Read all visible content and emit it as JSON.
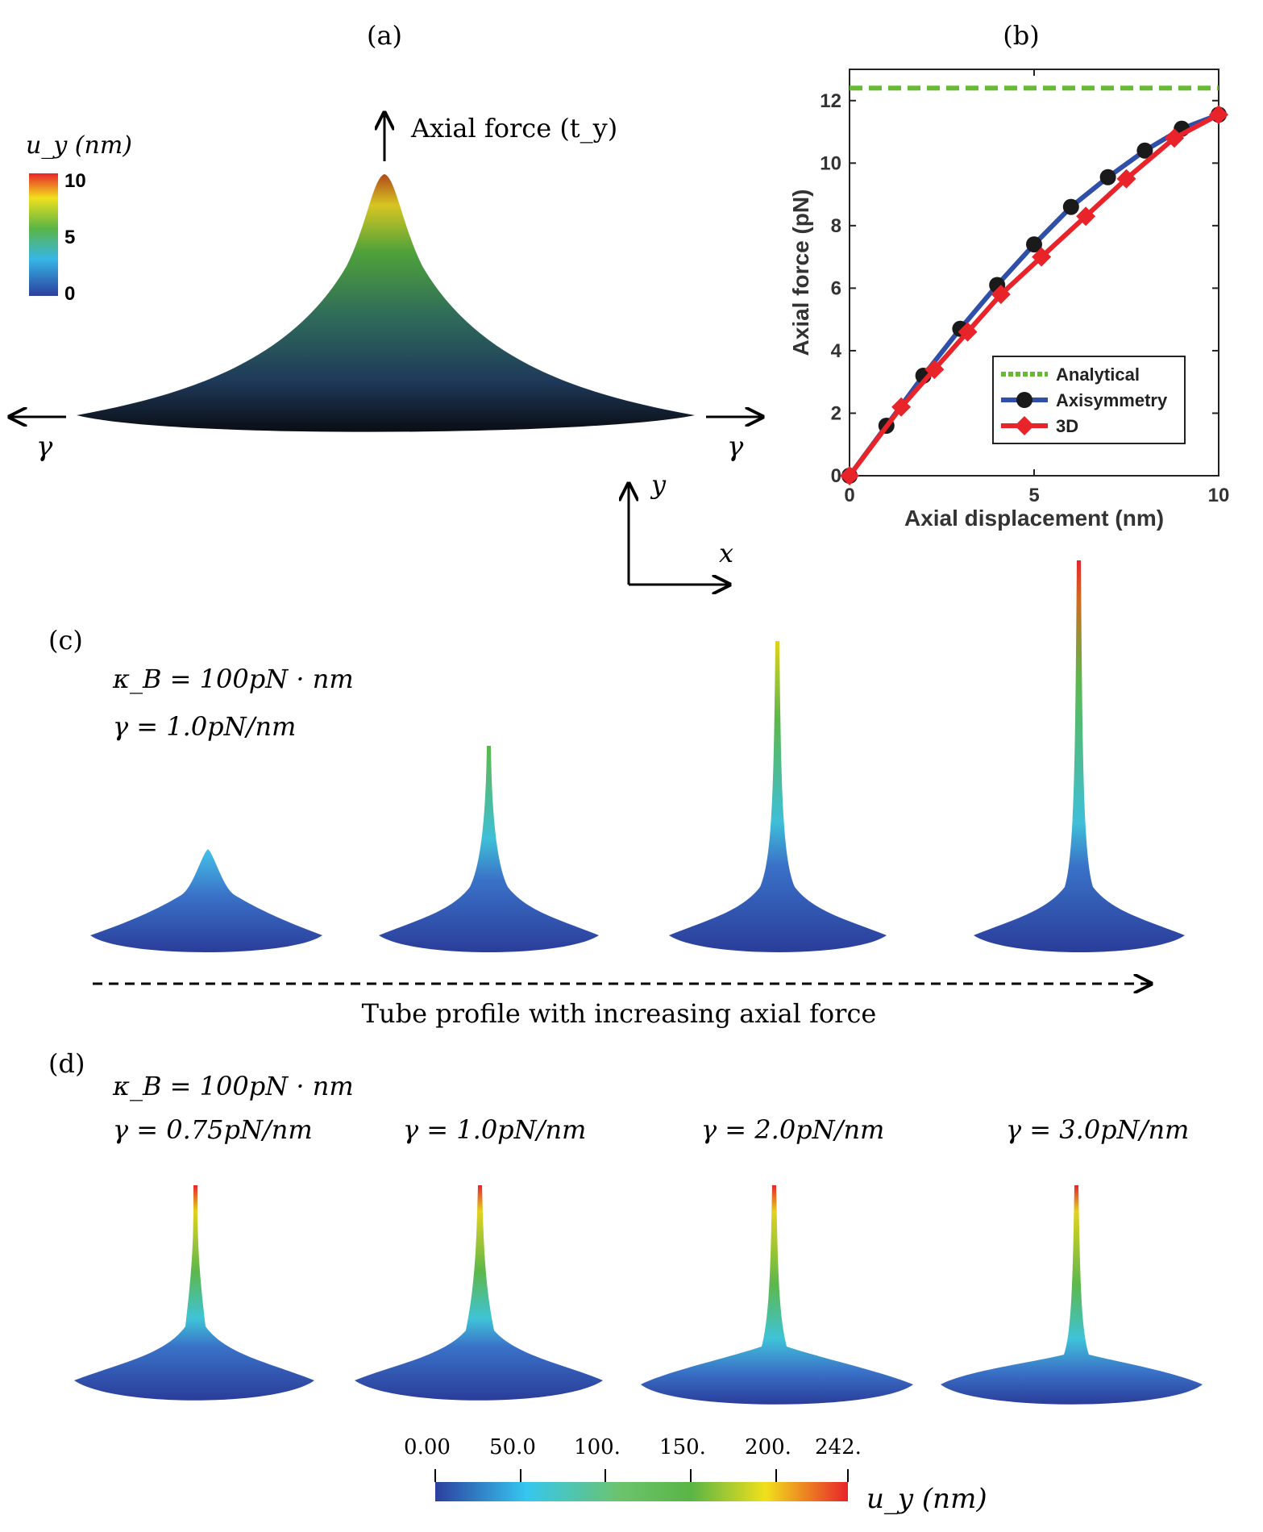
{
  "panel_labels": {
    "a": "(a)",
    "b": "(b)",
    "c": "(c)",
    "d": "(d)"
  },
  "panel_a": {
    "colorbar_title": "u_y (nm)",
    "colorbar_ticks": [
      "10",
      "5",
      "0"
    ],
    "axial_force_label": "Axial force (t_y)",
    "gamma_left": "γ",
    "gamma_right": "γ",
    "axis_y": "y",
    "axis_x": "x"
  },
  "chart_data": {
    "type": "line",
    "xlabel": "Axial displacement (nm)",
    "ylabel": "Axial force (pN)",
    "xlim": [
      0,
      10
    ],
    "ylim": [
      0,
      13
    ],
    "xticks": [
      "0",
      "5",
      "10"
    ],
    "yticks": [
      "0",
      "2",
      "4",
      "6",
      "8",
      "10",
      "12"
    ],
    "legend_position": "bottom-right",
    "series": [
      {
        "name": "Analytical",
        "color": "#66bb33",
        "style": "dashed",
        "x": [
          0,
          10
        ],
        "y": [
          12.4,
          12.4
        ]
      },
      {
        "name": "Axisymmetry",
        "color": "#2f4fa8",
        "marker": "circle",
        "marker_color": "#1a1a1a",
        "x": [
          0,
          1,
          2,
          3,
          4,
          5,
          6,
          7,
          8,
          9,
          10
        ],
        "y": [
          0,
          1.6,
          3.2,
          4.7,
          6.1,
          7.4,
          8.6,
          9.55,
          10.4,
          11.1,
          11.55
        ]
      },
      {
        "name": "3D",
        "color": "#e8242a",
        "marker": "diamond",
        "marker_color": "#e8242a",
        "x": [
          0,
          1.4,
          2.3,
          3.2,
          4.1,
          5.2,
          6.4,
          7.5,
          8.8,
          10
        ],
        "y": [
          0,
          2.2,
          3.4,
          4.6,
          5.8,
          7.0,
          8.3,
          9.5,
          10.8,
          11.55
        ]
      }
    ]
  },
  "panel_c": {
    "kappa": "κ_B = 100pN · nm",
    "gamma": "γ = 1.0pN/nm",
    "caption": "Tube profile with increasing axial force"
  },
  "panel_d": {
    "kappa": "κ_B = 100pN · nm",
    "gammas": [
      "γ = 0.75pN/nm",
      "γ = 1.0pN/nm",
      "γ = 2.0pN/nm",
      "γ = 3.0pN/nm"
    ],
    "colorbar_ticks": [
      "0.00",
      "50.0",
      "100.",
      "150.",
      "200.",
      "242."
    ],
    "colorbar_label": "u_y (nm)"
  },
  "colors": {
    "colormap": [
      "#2c3f9e",
      "#3a6fc4",
      "#36c6ef",
      "#6cc36c",
      "#5ab546",
      "#f0e01c",
      "#f47a20",
      "#e8242a"
    ],
    "shape_low": "#2a3d9a"
  }
}
